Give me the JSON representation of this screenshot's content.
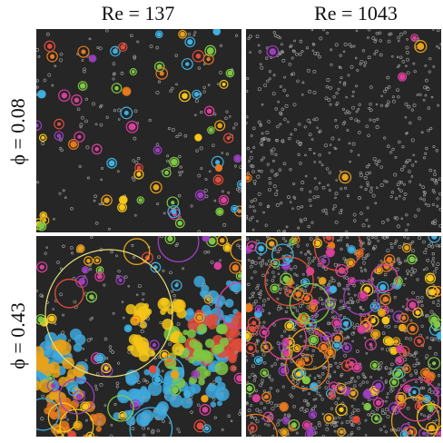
{
  "column_labels": [
    "Re = 137",
    "Re = 1043"
  ],
  "row_labels": [
    "ϕ = 0.08",
    "ϕ = 0.43"
  ]
}
